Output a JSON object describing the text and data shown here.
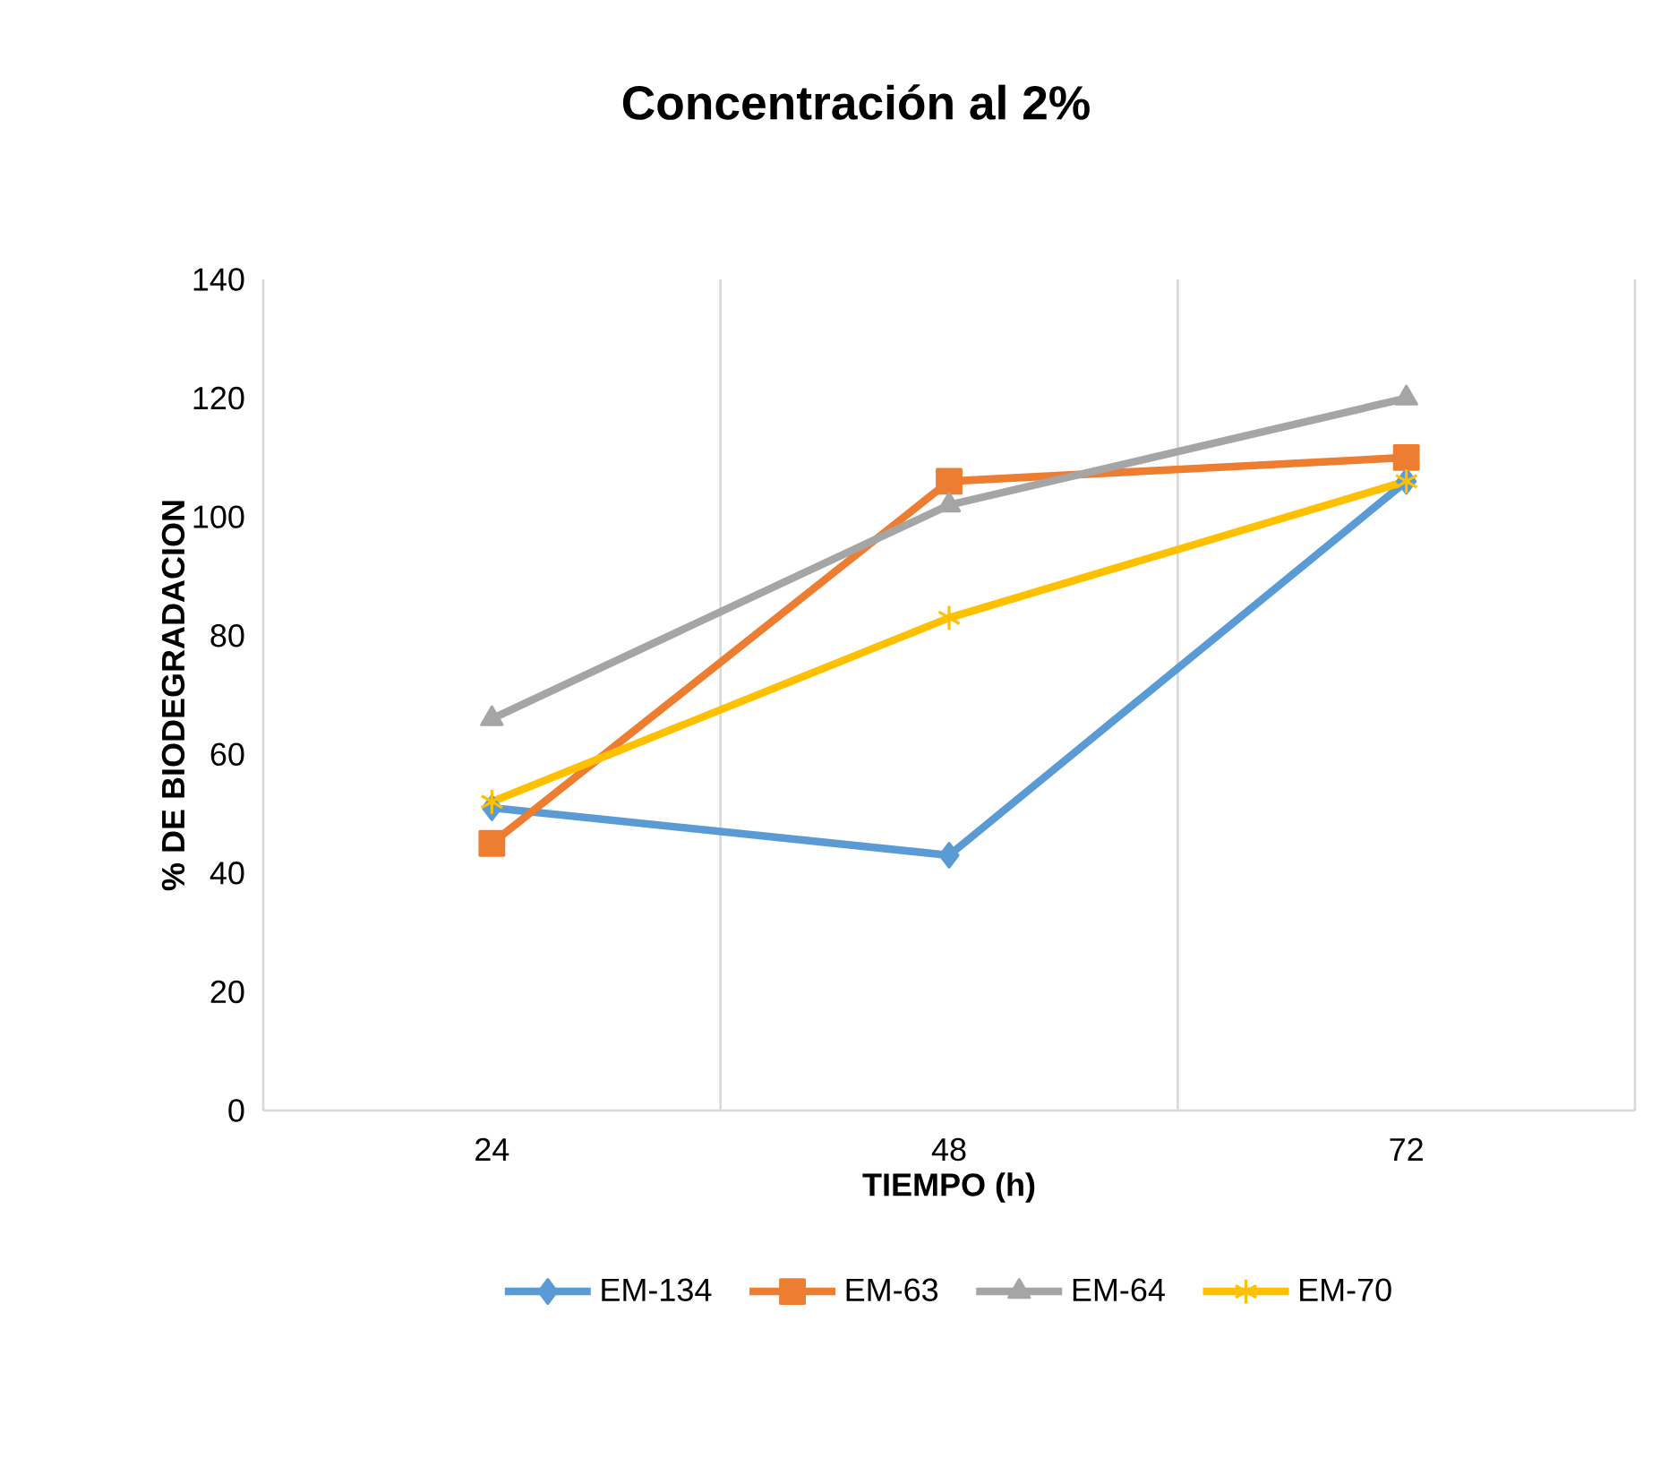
{
  "chart_data": {
    "type": "line",
    "title": "Concentración al 2%",
    "xlabel": "TIEMPO (h)",
    "ylabel": "% DE BIODEGRADACION",
    "categories": [
      "24",
      "48",
      "72"
    ],
    "series": [
      {
        "name": "EM-134",
        "color": "#5b9bd5",
        "marker": "diamond",
        "values": [
          51,
          43,
          106
        ]
      },
      {
        "name": "EM-63",
        "color": "#ed7d31",
        "marker": "square",
        "values": [
          45,
          106,
          110
        ]
      },
      {
        "name": "EM-64",
        "color": "#a5a5a5",
        "marker": "triangle",
        "values": [
          66,
          102,
          120
        ]
      },
      {
        "name": "EM-70",
        "color": "#ffc000",
        "marker": "cross",
        "values": [
          52,
          83,
          106
        ]
      }
    ],
    "ylim": [
      0,
      140
    ],
    "yticks": [
      0,
      20,
      40,
      60,
      80,
      100,
      120,
      140
    ],
    "grid": "x",
    "legend": "bottom",
    "line_style": "solid"
  }
}
